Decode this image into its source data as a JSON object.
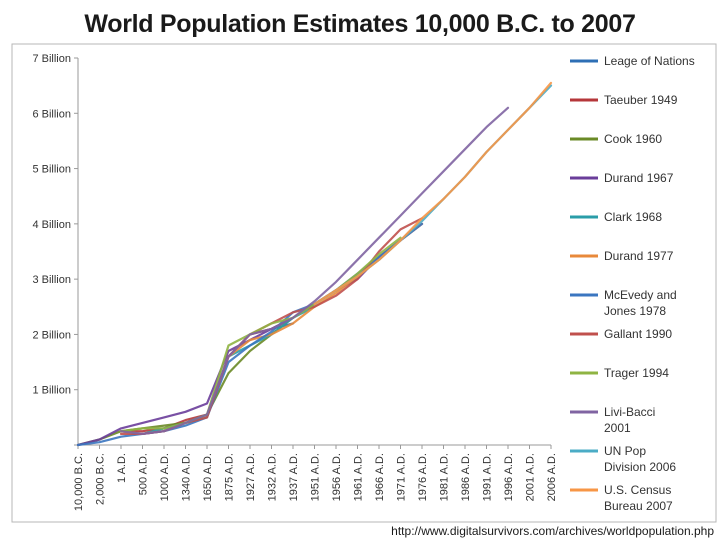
{
  "chart_data": {
    "type": "line",
    "title": "World Population Estimates 10,000 B.C. to 2007",
    "xlabel": "",
    "ylabel": "",
    "categories": [
      "10,000 B.C.",
      "2,000 B.C.",
      "1 A.D.",
      "500 A.D.",
      "1000 A.D.",
      "1340 A.D.",
      "1650 A.D.",
      "1875 A.D.",
      "1927 A.D.",
      "1932 A.D.",
      "1937 A.D.",
      "1951 A.D.",
      "1956 A.D.",
      "1961 A.D.",
      "1966 A.D.",
      "1971 A.D.",
      "1976 A.D.",
      "1981 A.D.",
      "1986 A.D.",
      "1991 A.D.",
      "1996 A.D.",
      "2001 A.D.",
      "2006 A.D."
    ],
    "y_ticks": [
      {
        "value": 0,
        "label": ""
      },
      {
        "value": 1,
        "label": "1 Billion"
      },
      {
        "value": 2,
        "label": "2 Billion"
      },
      {
        "value": 3,
        "label": "3 Billion"
      },
      {
        "value": 4,
        "label": "4 Billion"
      },
      {
        "value": 5,
        "label": "5 Billion"
      },
      {
        "value": 6,
        "label": "6 Billion"
      },
      {
        "value": 7,
        "label": "7 Billion"
      }
    ],
    "ylim": [
      0,
      7
    ],
    "grid": false,
    "legend_position": "right",
    "series": [
      {
        "name": "Leage of Nations",
        "color": "#2e6fb5",
        "values": [
          null,
          null,
          null,
          null,
          null,
          null,
          null,
          null,
          2.0,
          2.1,
          2.2,
          null,
          null,
          null,
          null,
          null,
          null,
          null,
          null,
          null,
          null,
          null,
          null
        ]
      },
      {
        "name": "Taeuber 1949",
        "color": "#b5363a",
        "values": [
          null,
          null,
          0.25,
          0.25,
          0.3,
          0.45,
          0.55,
          1.6,
          2.0,
          2.1,
          2.3,
          null,
          null,
          null,
          null,
          null,
          null,
          null,
          null,
          null,
          null,
          null,
          null
        ]
      },
      {
        "name": "Cook 1960",
        "color": "#6a8a26",
        "values": [
          0.0,
          0.1,
          0.25,
          0.3,
          0.35,
          0.4,
          0.55,
          1.3,
          1.7,
          2.0,
          2.3,
          null,
          null,
          null,
          null,
          null,
          null,
          null,
          null,
          null,
          null,
          null,
          null
        ]
      },
      {
        "name": "Durand 1967",
        "color": "#6a3d9a",
        "values": [
          0.0,
          0.1,
          0.3,
          0.4,
          0.5,
          0.6,
          0.75,
          1.7,
          1.9,
          2.1,
          2.3,
          2.55,
          2.8,
          3.0,
          3.4,
          3.7,
          4.0,
          null,
          null,
          null,
          null,
          null,
          null
        ]
      },
      {
        "name": "Clark 1968",
        "color": "#2a9da8",
        "values": [
          null,
          null,
          0.25,
          0.2,
          0.3,
          0.4,
          0.55,
          1.6,
          1.8,
          2.0,
          2.3,
          2.5,
          null,
          null,
          null,
          null,
          null,
          null,
          null,
          null,
          null,
          null,
          null
        ]
      },
      {
        "name": "Durand 1977",
        "color": "#e8893a",
        "values": [
          null,
          null,
          0.25,
          0.2,
          0.25,
          0.4,
          0.5,
          1.6,
          1.9,
          2.0,
          2.2,
          2.5,
          2.75,
          3.05,
          3.35,
          3.7,
          4.0,
          null,
          null,
          null,
          null,
          null,
          null
        ]
      },
      {
        "name": "McEvedy and Jones 1978",
        "color": "#3b76c0",
        "values": [
          0.0,
          0.05,
          0.15,
          0.2,
          0.25,
          0.35,
          0.5,
          1.5,
          1.8,
          2.05,
          2.4,
          2.55,
          2.8,
          3.1,
          3.4,
          3.7,
          4.0,
          null,
          null,
          null,
          null,
          null,
          null
        ]
      },
      {
        "name": "Gallant 1990",
        "color": "#c0504d",
        "values": [
          null,
          null,
          0.2,
          0.2,
          0.25,
          0.4,
          0.5,
          1.6,
          2.0,
          2.2,
          2.4,
          2.5,
          2.7,
          3.0,
          3.5,
          3.9,
          4.1,
          null,
          null,
          null,
          null,
          null,
          null
        ]
      },
      {
        "name": "Trager 1994",
        "color": "#8fb443",
        "values": [
          null,
          null,
          0.25,
          0.3,
          0.3,
          0.4,
          0.55,
          1.8,
          2.0,
          2.2,
          2.3,
          2.55,
          2.8,
          3.1,
          3.45,
          3.75,
          null,
          null,
          null,
          null,
          null,
          null,
          null
        ]
      },
      {
        "name": "Livi-Bacci 2001",
        "color": "#8064a2",
        "values": [
          null,
          null,
          0.25,
          0.2,
          0.25,
          0.4,
          0.55,
          1.6,
          2.0,
          2.1,
          2.3,
          2.6,
          2.95,
          3.35,
          3.75,
          4.15,
          4.55,
          4.95,
          5.35,
          5.75,
          6.1,
          null,
          null
        ]
      },
      {
        "name": "UN Pop Division 2006",
        "color": "#4bacc6",
        "values": [
          null,
          null,
          null,
          null,
          null,
          null,
          null,
          null,
          null,
          null,
          null,
          2.55,
          2.8,
          3.05,
          3.35,
          3.7,
          4.05,
          4.45,
          4.85,
          5.3,
          5.7,
          6.1,
          6.5
        ]
      },
      {
        "name": "U.S. Census Bureau 2007",
        "color": "#f79646",
        "values": [
          null,
          null,
          null,
          null,
          null,
          null,
          null,
          null,
          null,
          null,
          null,
          2.55,
          2.8,
          3.05,
          3.35,
          3.7,
          4.1,
          4.45,
          4.85,
          5.3,
          5.7,
          6.1,
          6.55
        ]
      }
    ],
    "legend_lines": [
      [
        "Leage of Nations"
      ],
      [
        "Taeuber 1949"
      ],
      [
        "Cook 1960"
      ],
      [
        "Durand 1967"
      ],
      [
        "Clark 1968"
      ],
      [
        "Durand 1977"
      ],
      [
        "McEvedy and",
        "Jones 1978"
      ],
      [
        "Gallant 1990"
      ],
      [
        "Trager 1994"
      ],
      [
        "Livi-Bacci",
        "2001"
      ],
      [
        "UN Pop",
        "Division 2006"
      ],
      [
        "U.S. Census",
        "Bureau 2007"
      ]
    ]
  },
  "source_url": "http://www.digitalsurvivors.com/archives/worldpopulation.php"
}
